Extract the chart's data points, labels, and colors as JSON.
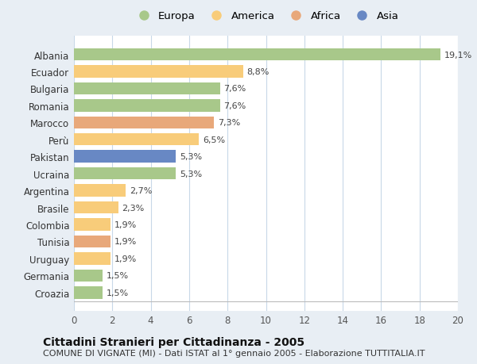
{
  "categories": [
    "Albania",
    "Ecuador",
    "Bulgaria",
    "Romania",
    "Marocco",
    "Perù",
    "Pakistan",
    "Ucraina",
    "Argentina",
    "Brasile",
    "Colombia",
    "Tunisia",
    "Uruguay",
    "Germania",
    "Croazia"
  ],
  "values": [
    19.1,
    8.8,
    7.6,
    7.6,
    7.3,
    6.5,
    5.3,
    5.3,
    2.7,
    2.3,
    1.9,
    1.9,
    1.9,
    1.5,
    1.5
  ],
  "labels": [
    "19,1%",
    "8,8%",
    "7,6%",
    "7,6%",
    "7,3%",
    "6,5%",
    "5,3%",
    "5,3%",
    "2,7%",
    "2,3%",
    "1,9%",
    "1,9%",
    "1,9%",
    "1,5%",
    "1,5%"
  ],
  "continents": [
    "Europa",
    "America",
    "Europa",
    "Europa",
    "Africa",
    "America",
    "Asia",
    "Europa",
    "America",
    "America",
    "America",
    "Africa",
    "America",
    "Europa",
    "Europa"
  ],
  "continent_colors": {
    "Europa": "#a8c88a",
    "America": "#f8cc7a",
    "Africa": "#e8a87a",
    "Asia": "#6888c4"
  },
  "legend_order": [
    "Europa",
    "America",
    "Africa",
    "Asia"
  ],
  "title": "Cittadini Stranieri per Cittadinanza - 2005",
  "subtitle": "COMUNE DI VIGNATE (MI) - Dati ISTAT al 1° gennaio 2005 - Elaborazione TUTTITALIA.IT",
  "xlim": [
    0,
    20
  ],
  "xticks": [
    0,
    2,
    4,
    6,
    8,
    10,
    12,
    14,
    16,
    18,
    20
  ],
  "background_color": "#e8eef4",
  "plot_bg_color": "#ffffff",
  "grid_color": "#c8d8e8",
  "bar_height": 0.72,
  "title_fontsize": 10,
  "subtitle_fontsize": 8,
  "label_fontsize": 8,
  "tick_fontsize": 8.5,
  "legend_fontsize": 9.5
}
